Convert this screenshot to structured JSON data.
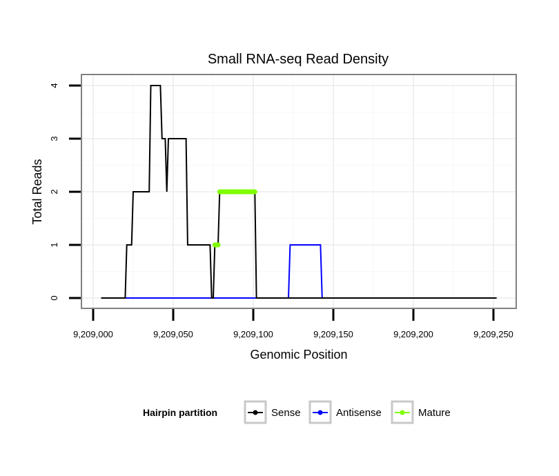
{
  "chart_data": {
    "type": "line",
    "title": "Small RNA-seq Read Density",
    "xlabel": "Genomic Position",
    "ylabel": "Total Reads",
    "xlim": [
      9209000,
      9209250
    ],
    "ylim": [
      0,
      4
    ],
    "x_ticks": [
      9209000,
      9209050,
      9209100,
      9209150,
      9209200,
      9209250
    ],
    "x_tick_labels": [
      "9,209,000",
      "9,209,050",
      "9,209,100",
      "9,209,150",
      "9,209,200",
      "9,209,250"
    ],
    "y_ticks": [
      0,
      1,
      2,
      3,
      4
    ],
    "y_tick_labels": [
      "0",
      "1",
      "2",
      "3",
      "4"
    ],
    "grid": true,
    "legend": {
      "title": "Hairpin partition",
      "position": "bottom",
      "entries": [
        "Sense",
        "Antisense",
        "Mature"
      ]
    },
    "series": [
      {
        "name": "Sense",
        "color": "#000000",
        "points": [
          [
            9209005,
            0
          ],
          [
            9209020,
            0
          ],
          [
            9209021,
            1
          ],
          [
            9209024,
            1
          ],
          [
            9209025,
            2
          ],
          [
            9209035,
            2
          ],
          [
            9209036,
            4
          ],
          [
            9209042,
            4
          ],
          [
            9209043,
            3
          ],
          [
            9209045,
            3
          ],
          [
            9209046,
            2
          ],
          [
            9209047,
            3
          ],
          [
            9209058,
            3
          ],
          [
            9209059,
            1
          ],
          [
            9209073,
            1
          ],
          [
            9209074,
            0
          ],
          [
            9209075,
            0
          ],
          [
            9209076,
            1
          ],
          [
            9209078,
            1
          ],
          [
            9209079,
            2
          ],
          [
            9209101,
            2
          ],
          [
            9209102,
            0
          ],
          [
            9209252,
            0
          ]
        ]
      },
      {
        "name": "Antisense",
        "color": "#0000ff",
        "points": [
          [
            9209005,
            0
          ],
          [
            9209122,
            0
          ],
          [
            9209123,
            1
          ],
          [
            9209142,
            1
          ],
          [
            9209143,
            0
          ],
          [
            9209252,
            0
          ]
        ]
      },
      {
        "name": "Mature",
        "color": "#7fff00",
        "segments": [
          [
            [
              9209076,
              1
            ],
            [
              9209078,
              1
            ]
          ],
          [
            [
              9209079,
              2
            ],
            [
              9209101,
              2
            ]
          ]
        ]
      }
    ]
  }
}
